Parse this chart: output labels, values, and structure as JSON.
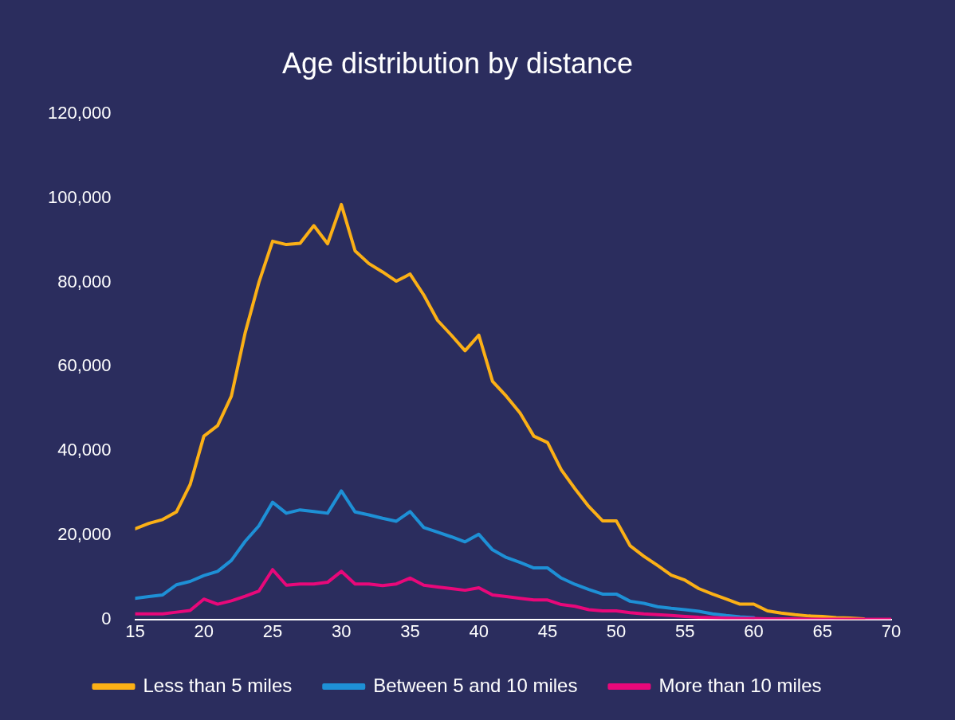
{
  "chart_data": {
    "type": "line",
    "title": "Age distribution by distance",
    "x": [
      15,
      16,
      17,
      18,
      19,
      20,
      21,
      22,
      23,
      24,
      25,
      26,
      27,
      28,
      29,
      30,
      31,
      32,
      33,
      34,
      35,
      36,
      37,
      38,
      39,
      40,
      41,
      42,
      43,
      44,
      45,
      46,
      47,
      48,
      49,
      50,
      51,
      52,
      53,
      54,
      55,
      56,
      57,
      58,
      59,
      60,
      61,
      62,
      63,
      64,
      65,
      66,
      67,
      68,
      69,
      70
    ],
    "series": [
      {
        "name": "Less than 5 miles",
        "color": "#fbb016",
        "values": [
          21500,
          22800,
          23700,
          25500,
          32000,
          43500,
          46000,
          53000,
          68000,
          80000,
          89800,
          89000,
          89300,
          93500,
          89200,
          98500,
          87500,
          84500,
          82500,
          80300,
          82000,
          77000,
          71000,
          67500,
          63800,
          67500,
          56500,
          53000,
          49000,
          43500,
          42000,
          35500,
          31000,
          26800,
          23400,
          23400,
          17500,
          15000,
          12800,
          10500,
          9300,
          7300,
          6000,
          4800,
          3600,
          3600,
          2000,
          1500,
          1100,
          800,
          700,
          400,
          300,
          100,
          null,
          null
        ]
      },
      {
        "name": "Between 5 and 10 miles",
        "color": "#1e90d6",
        "values": [
          5000,
          5400,
          5800,
          8200,
          9000,
          10400,
          11400,
          14000,
          18500,
          22200,
          27800,
          25200,
          26000,
          25600,
          25200,
          30500,
          25500,
          24800,
          24000,
          23300,
          25600,
          21800,
          20700,
          19600,
          18400,
          20200,
          16500,
          14700,
          13500,
          12200,
          12200,
          9800,
          8300,
          7100,
          6000,
          6000,
          4300,
          3800,
          3000,
          2600,
          2300,
          1900,
          1300,
          900,
          600,
          400,
          null,
          null,
          null,
          null,
          null,
          null,
          null,
          null,
          null,
          null
        ]
      },
      {
        "name": "More than 10 miles",
        "color": "#e8087a",
        "values": [
          1300,
          1300,
          1300,
          1700,
          2100,
          4800,
          3600,
          4400,
          5500,
          6700,
          11800,
          8100,
          8400,
          8400,
          8800,
          11400,
          8400,
          8400,
          8000,
          8400,
          9800,
          8100,
          7700,
          7300,
          6900,
          7500,
          5800,
          5400,
          5000,
          4600,
          4600,
          3500,
          3100,
          2300,
          2000,
          2000,
          1600,
          1300,
          1100,
          900,
          700,
          500,
          400,
          300,
          200,
          200,
          100,
          100,
          100,
          0,
          0,
          0,
          0,
          0,
          0,
          0
        ]
      }
    ],
    "xlim": [
      15,
      70
    ],
    "xticks": [
      15,
      20,
      25,
      30,
      35,
      40,
      45,
      50,
      55,
      60,
      65,
      70
    ],
    "ylim": [
      0,
      120000
    ],
    "yticks": [
      {
        "value": 0,
        "label": "0"
      },
      {
        "value": 20000,
        "label": "20,000"
      },
      {
        "value": 40000,
        "label": "40,000"
      },
      {
        "value": 60000,
        "label": "60,000"
      },
      {
        "value": 80000,
        "label": "80,000"
      },
      {
        "value": 100000,
        "label": "100,000"
      },
      {
        "value": 120000,
        "label": "120,000"
      }
    ],
    "grid": false,
    "legend": "bottom",
    "marker": "none",
    "line_style": "solid"
  }
}
